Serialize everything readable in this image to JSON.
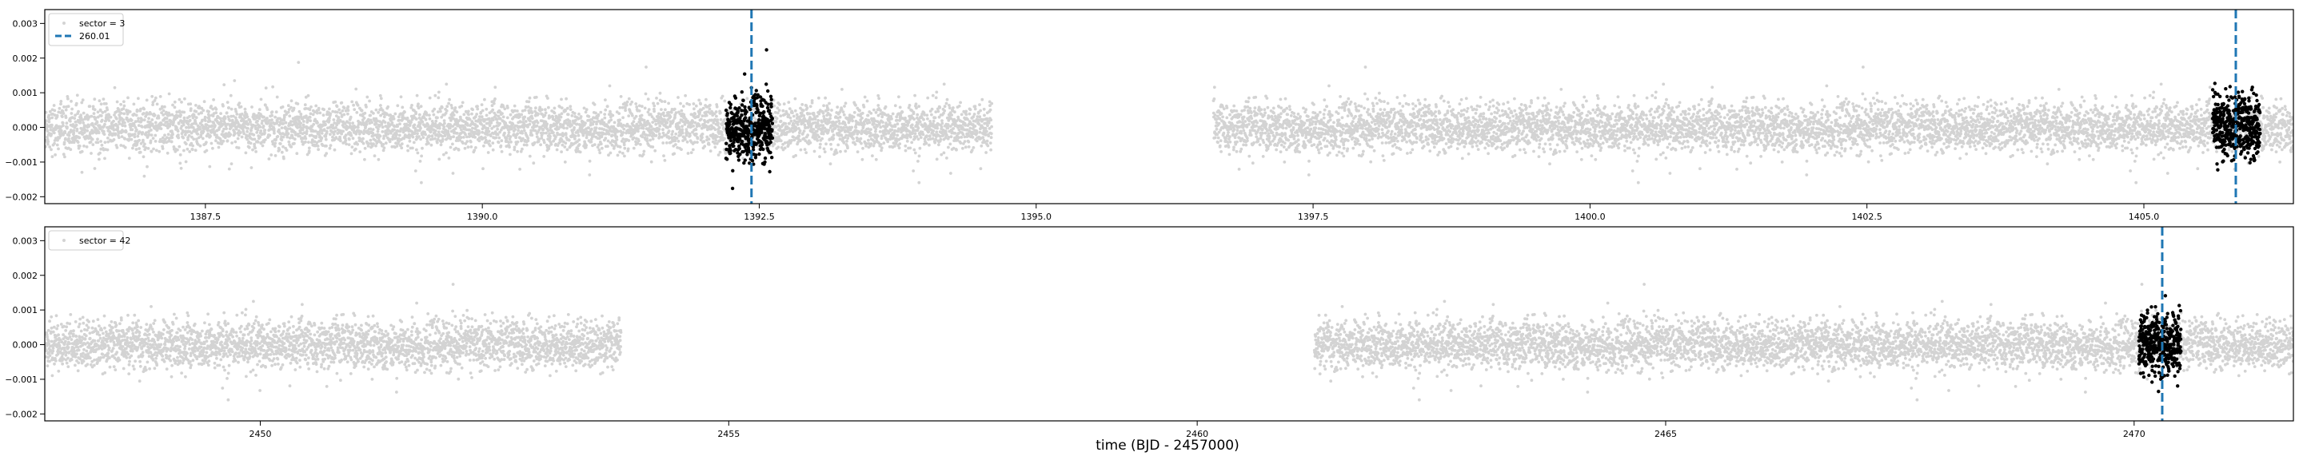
{
  "figure": {
    "xlabel": "time (BJD - 2457000)"
  },
  "chart_data": [
    {
      "type": "scatter",
      "xlim": [
        1386.05,
        1406.35
      ],
      "ylim": [
        -0.0022,
        0.0034
      ],
      "x_ticks": [
        1387.5,
        1390.0,
        1392.5,
        1395.0,
        1397.5,
        1400.0,
        1402.5,
        1405.0
      ],
      "x_tick_labels": [
        "1387.5",
        "1390.0",
        "1392.5",
        "1395.0",
        "1397.5",
        "1400.0",
        "1402.5",
        "1405.0"
      ],
      "y_ticks": [
        -0.002,
        -0.001,
        0.0,
        0.001,
        0.002,
        0.003
      ],
      "y_tick_labels": [
        "−0.002",
        "−0.001",
        "0.000",
        "0.001",
        "0.002",
        "0.003"
      ],
      "grid": false,
      "legend_position": "top-left",
      "series": [
        {
          "name": "sector = 3",
          "kind": "scatter",
          "color": "#d3d3d3",
          "segments": [
            [
              1386.05,
              1394.6
            ],
            [
              1396.6,
              1406.35
            ]
          ],
          "center": 0.0,
          "spread": 0.00035
        },
        {
          "name": "",
          "kind": "scatter-highlight",
          "color": "#000000",
          "segments": [
            [
              1392.2,
              1392.62
            ],
            [
              1405.62,
              1406.05
            ]
          ],
          "center": 0.0,
          "spread": 0.00045
        },
        {
          "name": "260.01",
          "kind": "vline",
          "color": "#1f77b4",
          "x_values": [
            1392.43,
            1405.83
          ]
        }
      ]
    },
    {
      "type": "scatter",
      "xlim": [
        2447.7,
        2471.7
      ],
      "ylim": [
        -0.0022,
        0.0034
      ],
      "x_ticks": [
        2450,
        2455,
        2460,
        2465,
        2470
      ],
      "x_tick_labels": [
        "2450",
        "2455",
        "2460",
        "2465",
        "2470"
      ],
      "y_ticks": [
        -0.002,
        -0.001,
        0.0,
        0.001,
        0.002,
        0.003
      ],
      "y_tick_labels": [
        "−0.002",
        "−0.001",
        "0.000",
        "0.001",
        "0.002",
        "0.003"
      ],
      "grid": false,
      "legend_position": "top-left",
      "series": [
        {
          "name": "sector = 42",
          "kind": "scatter",
          "color": "#d3d3d3",
          "segments": [
            [
              2447.7,
              2453.85
            ],
            [
              2461.25,
              2471.7
            ]
          ],
          "center": 0.0,
          "spread": 0.00035
        },
        {
          "name": "",
          "kind": "scatter-highlight",
          "color": "#000000",
          "segments": [
            [
              2470.05,
              2470.5
            ]
          ],
          "center": 0.0,
          "spread": 0.00045
        },
        {
          "name": "",
          "kind": "vline",
          "color": "#1f77b4",
          "x_values": [
            2470.3
          ]
        }
      ]
    }
  ]
}
